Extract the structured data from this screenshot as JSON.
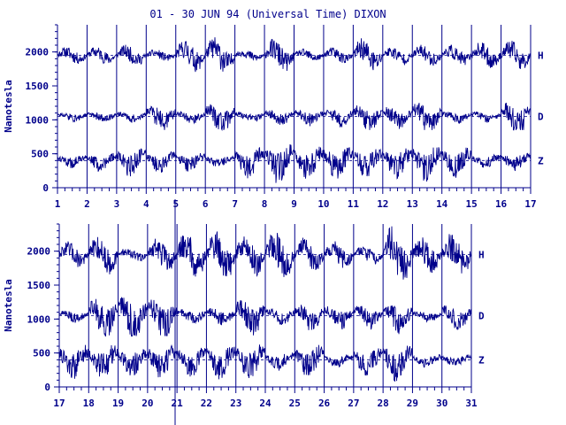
{
  "title": "01 - 30 JUN 94 (Universal Time) DIXON",
  "chart_data": [
    {
      "type": "line",
      "panel": "top",
      "ylabel": "Nanotesla",
      "ylim": [
        0,
        2400
      ],
      "yticks": [
        0,
        500,
        1000,
        1500,
        2000
      ],
      "x_range": [
        1,
        17
      ],
      "x_ticks": [
        1,
        2,
        3,
        4,
        5,
        6,
        7,
        8,
        9,
        10,
        11,
        12,
        13,
        14,
        15,
        16,
        17
      ],
      "grid": "vertical lines at each day",
      "series": [
        {
          "name": "H",
          "baseline": 1950,
          "min": 1700,
          "max": 2350,
          "label": "H"
        },
        {
          "name": "D",
          "baseline": 1050,
          "min": 850,
          "max": 1450,
          "label": "D"
        },
        {
          "name": "Z",
          "baseline": 400,
          "min": 50,
          "max": 700,
          "label": "Z"
        }
      ]
    },
    {
      "type": "line",
      "panel": "bottom",
      "ylabel": "Nanotesla",
      "ylim": [
        0,
        2400
      ],
      "yticks": [
        0,
        500,
        1000,
        1500,
        2000
      ],
      "x_range": [
        17,
        31
      ],
      "x_ticks": [
        17,
        18,
        19,
        20,
        21,
        22,
        23,
        24,
        25,
        26,
        27,
        28,
        29,
        30,
        31
      ],
      "grid": "vertical lines at each day",
      "series": [
        {
          "name": "H",
          "baseline": 1950,
          "min": 1450,
          "max": 2400,
          "label": "H"
        },
        {
          "name": "D",
          "baseline": 1050,
          "min": 750,
          "max": 1500,
          "label": "D"
        },
        {
          "name": "Z",
          "baseline": 400,
          "min": 50,
          "max": 700,
          "label": "Z"
        }
      ]
    }
  ],
  "colors": {
    "ink": "#00008b",
    "background": "#ffffff"
  }
}
